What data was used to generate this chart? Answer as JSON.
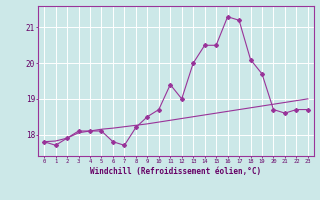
{
  "x": [
    0,
    1,
    2,
    3,
    4,
    5,
    6,
    7,
    8,
    9,
    10,
    11,
    12,
    13,
    14,
    15,
    16,
    17,
    18,
    19,
    20,
    21,
    22,
    23
  ],
  "windchill": [
    17.8,
    17.7,
    17.9,
    18.1,
    18.1,
    18.1,
    17.8,
    17.7,
    18.2,
    18.5,
    18.7,
    19.4,
    19.0,
    20.0,
    20.5,
    20.5,
    21.3,
    21.2,
    20.1,
    19.7,
    18.7,
    18.6,
    18.7,
    18.7
  ],
  "temp": [
    17.8,
    17.82,
    17.9,
    18.05,
    18.1,
    18.15,
    18.18,
    18.22,
    18.26,
    18.3,
    18.35,
    18.4,
    18.45,
    18.5,
    18.55,
    18.6,
    18.65,
    18.7,
    18.75,
    18.8,
    18.85,
    18.9,
    18.95,
    19.0
  ],
  "line_color": "#993399",
  "bg_color": "#cce8e8",
  "grid_color": "#ffffff",
  "xlabel": "Windchill (Refroidissement éolien,°C)",
  "ylabel_ticks": [
    18,
    19,
    20,
    21
  ],
  "xlim": [
    -0.5,
    23.5
  ],
  "ylim": [
    17.4,
    21.6
  ]
}
